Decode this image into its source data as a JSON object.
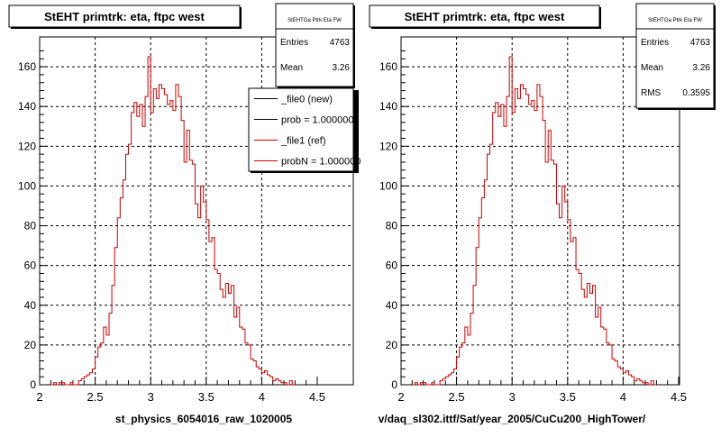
{
  "pads": [
    {
      "title": "StEHT primtrk: eta, ftpc west",
      "xlabel": "st_physics_6054016_raw_1020005",
      "stats": {
        "name": "StEHTGa Ptrk Eta FW",
        "rows": [
          {
            "label": "Entries",
            "value": "4763"
          },
          {
            "label": "Mean",
            "value": "3.26"
          }
        ]
      },
      "legend": [
        {
          "label": "_file0 (new)",
          "color": "#000000"
        },
        {
          "label": "prob = 1.000000",
          "color": "#000000"
        },
        {
          "label": "_file1 (ref)",
          "color": "#cc0000"
        },
        {
          "label": "probN = 1.000000",
          "color": "#cc0000"
        }
      ]
    },
    {
      "title": "StEHT primtrk: eta, ftpc west",
      "xlabel": "v/daq_sl302.ittf/Sat/year_2005/CuCu200_HighTower/",
      "stats": {
        "name": "StEHTGa Ptrk Eta FW",
        "rows": [
          {
            "label": "Entries",
            "value": "4763"
          },
          {
            "label": "Mean",
            "value": "3.26"
          },
          {
            "label": "RMS",
            "value": "0.3595"
          }
        ]
      },
      "legend": []
    }
  ],
  "chart_data": {
    "type": "histogram",
    "xlim": [
      2,
      4.5
    ],
    "ylim": [
      0,
      175
    ],
    "xticks": [
      "2",
      "2.5",
      "3",
      "3.5",
      "4",
      "4.5"
    ],
    "yticks": [
      "0",
      "20",
      "40",
      "60",
      "80",
      "100",
      "120",
      "140",
      "160"
    ],
    "grid": true,
    "bin_width": 0.025,
    "x_start": 2.1,
    "color": "#cc0000",
    "values": [
      0,
      1,
      0,
      1,
      1,
      0,
      0,
      1,
      0,
      0,
      2,
      3,
      4,
      5,
      6,
      8,
      14,
      19,
      21,
      29,
      25,
      36,
      50,
      69,
      84,
      94,
      103,
      116,
      121,
      137,
      142,
      135,
      141,
      130,
      145,
      165,
      137,
      149,
      144,
      151,
      149,
      146,
      141,
      143,
      138,
      151,
      145,
      133,
      112,
      128,
      113,
      111,
      91,
      84,
      100,
      92,
      83,
      72,
      74,
      58,
      56,
      48,
      44,
      51,
      46,
      50,
      34,
      39,
      29,
      28,
      21,
      20,
      13,
      12,
      9,
      8,
      6,
      7,
      5,
      4,
      2,
      3,
      2,
      1,
      1,
      0,
      2,
      0
    ]
  }
}
